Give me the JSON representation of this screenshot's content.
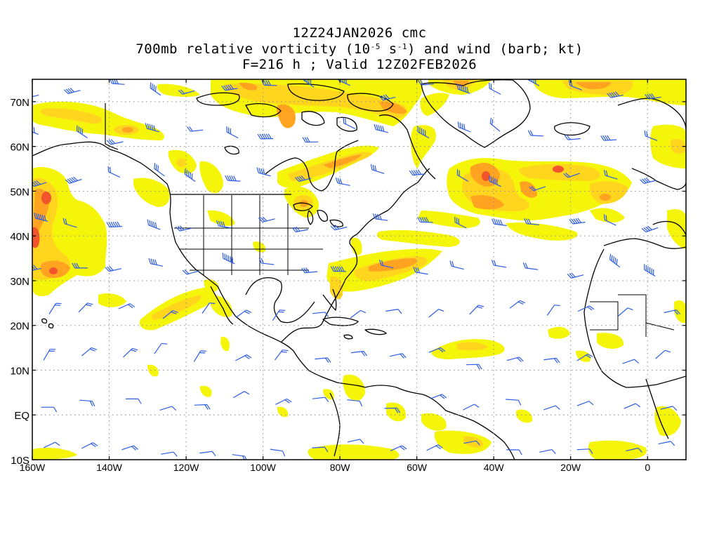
{
  "title": {
    "line1": "12Z24JAN2026 cmc",
    "line2_pre": "700mb relative vorticity (10",
    "line2_exp1": "-5",
    "line2_mid": " s",
    "line2_exp2": "-1",
    "line2_post": ") and wind (barb; kt)",
    "line3": "F=216 h ; Valid 12Z02FEB2026"
  },
  "map": {
    "projection": "lat-lon",
    "lon_range": [
      -160,
      10
    ],
    "lat_range": [
      -10,
      75
    ],
    "gridlines": "dotted",
    "lat_labels": [
      {
        "lat": 70,
        "label": "70N"
      },
      {
        "lat": 60,
        "label": "60N"
      },
      {
        "lat": 50,
        "label": "50N"
      },
      {
        "lat": 40,
        "label": "40N"
      },
      {
        "lat": 30,
        "label": "30N"
      },
      {
        "lat": 20,
        "label": "20N"
      },
      {
        "lat": 10,
        "label": "10N"
      },
      {
        "lat": 0,
        "label": "EQ"
      },
      {
        "lat": -10,
        "label": "10S"
      }
    ],
    "lon_labels": [
      {
        "lon": -160,
        "label": "160W"
      },
      {
        "lon": -140,
        "label": "140W"
      },
      {
        "lon": -120,
        "label": "120W"
      },
      {
        "lon": -100,
        "label": "100W"
      },
      {
        "lon": -80,
        "label": "80W"
      },
      {
        "lon": -60,
        "label": "60W"
      },
      {
        "lon": -40,
        "label": "40W"
      },
      {
        "lon": -20,
        "label": "20W"
      },
      {
        "lon": 0,
        "label": "0"
      }
    ],
    "colors": {
      "weak": "#f5f50a",
      "moderate": "#ffd51e",
      "strong": "#ffa321",
      "intense": "#f2542c",
      "barb": "#2d5ce6",
      "coast": "#000000",
      "grid": "#8c8c8c"
    }
  }
}
